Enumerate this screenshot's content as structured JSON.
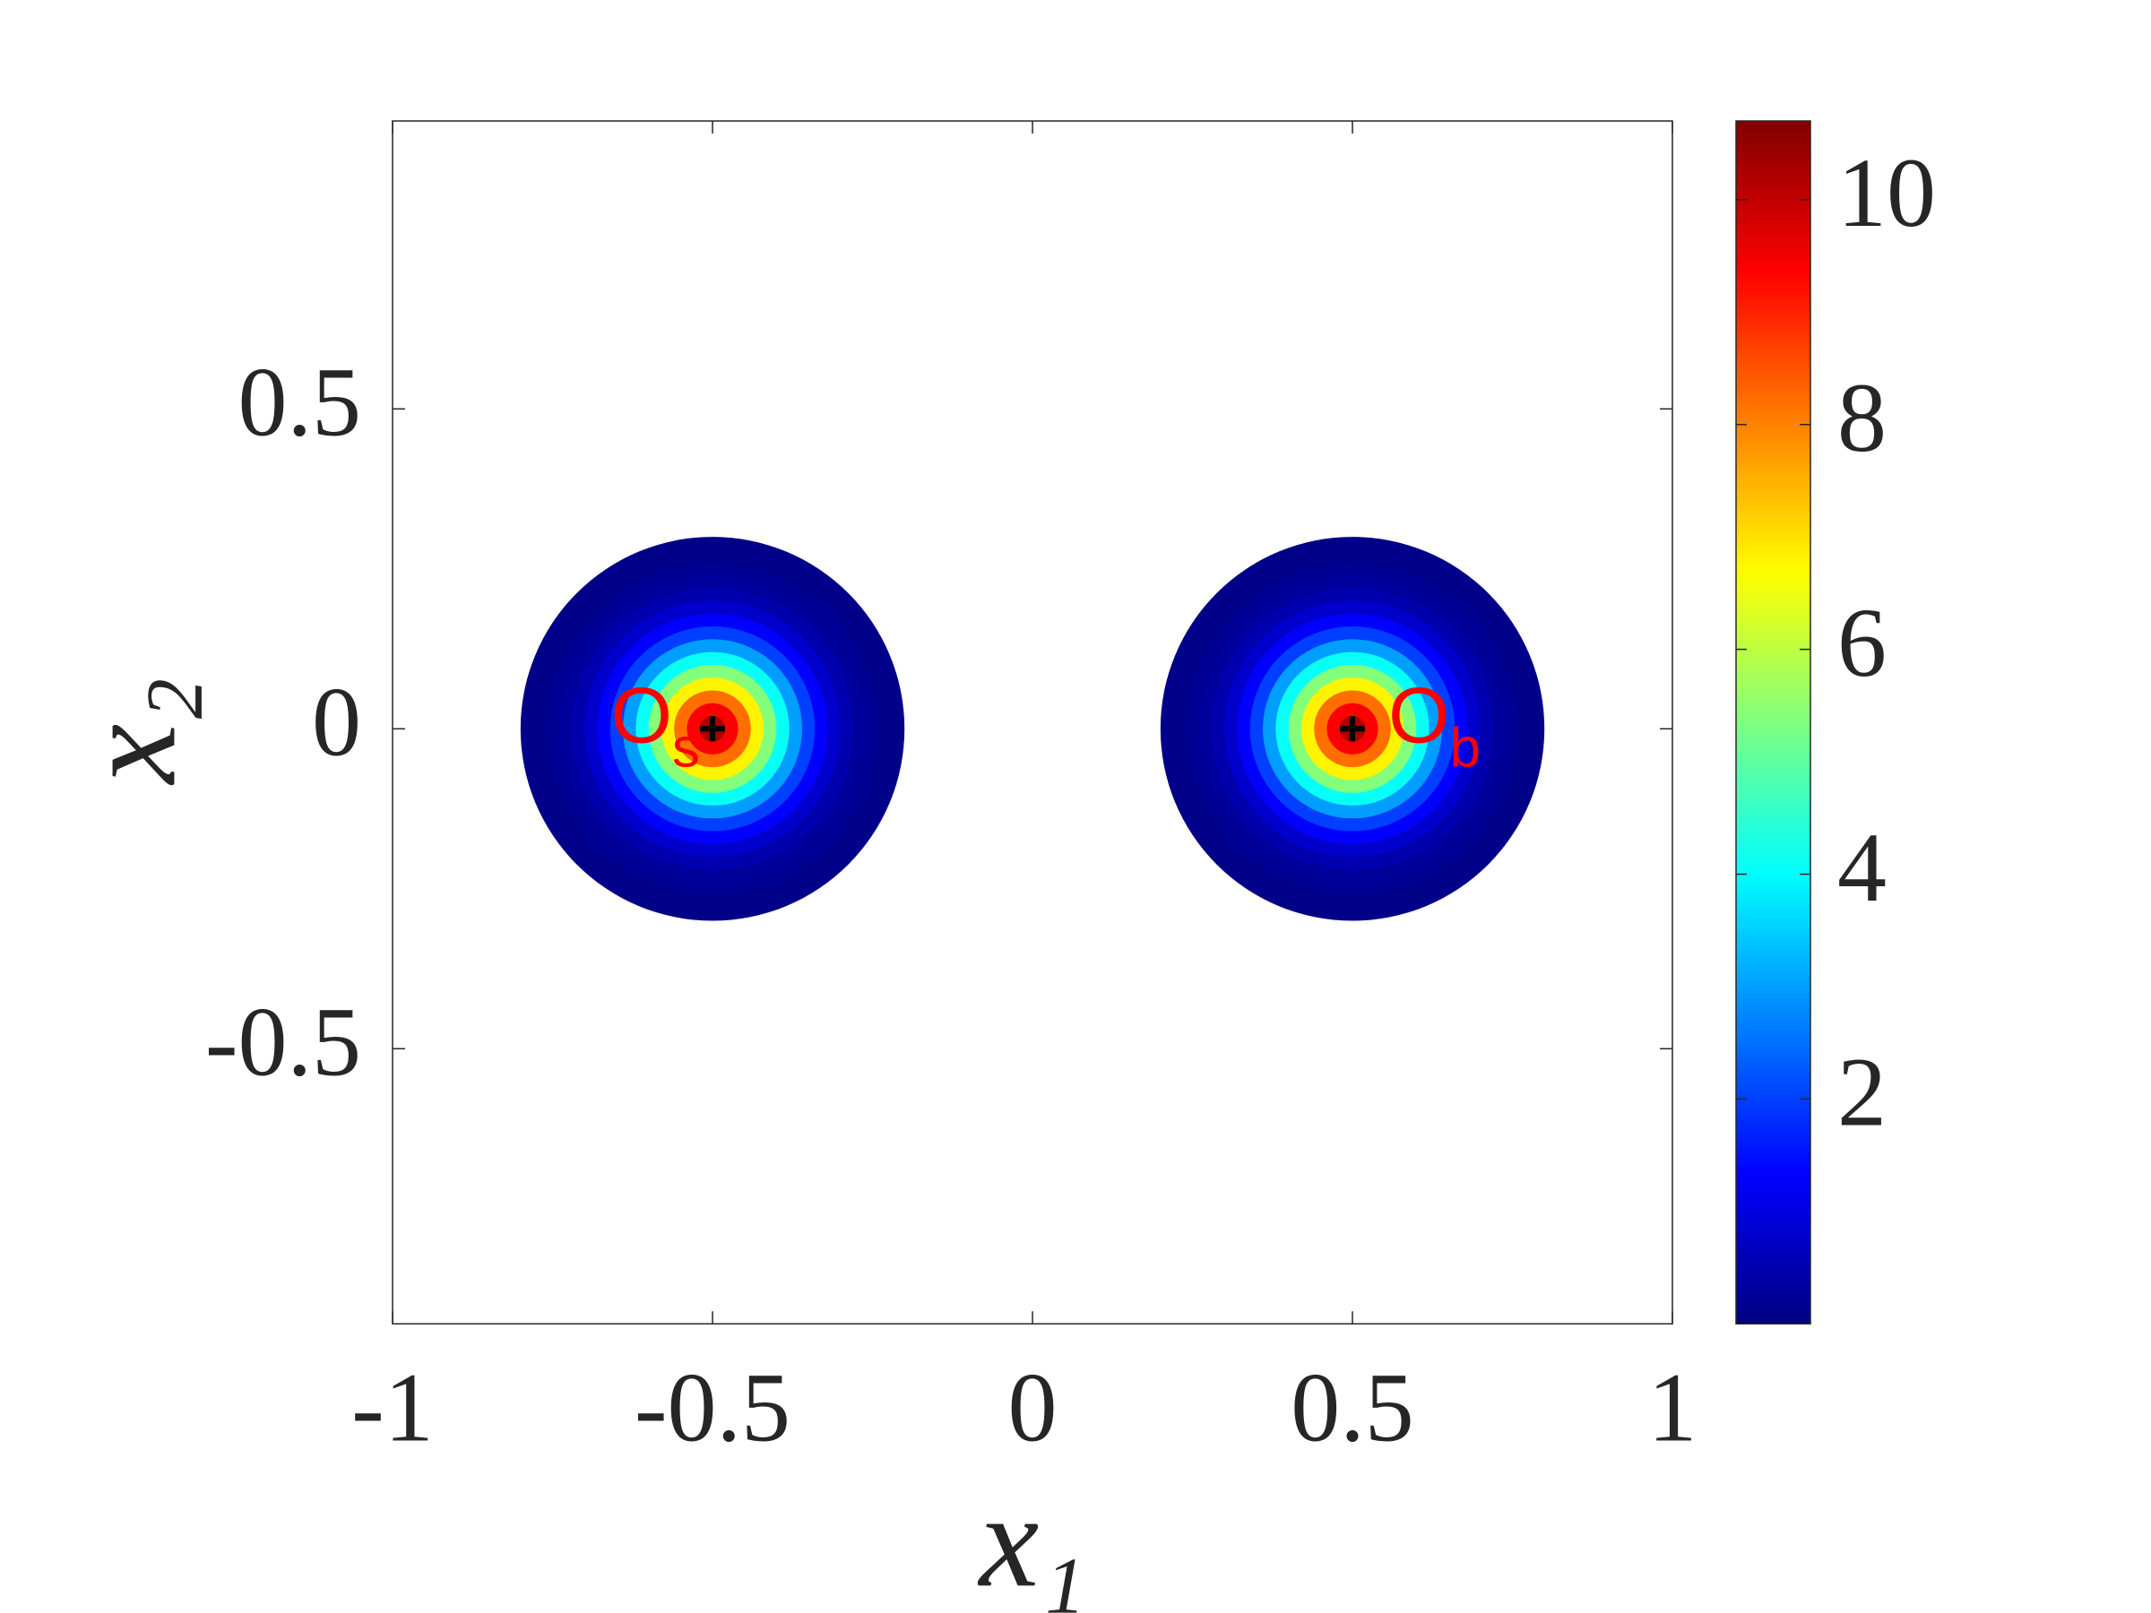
{
  "chart_data": {
    "type": "heatmap",
    "colormap": "jet",
    "xlabel": "x₁",
    "ylabel": "x₂",
    "xlim": [
      -1,
      1
    ],
    "ylim": [
      -0.93,
      0.95
    ],
    "xticks": [
      -1,
      -0.5,
      0,
      0.5,
      1
    ],
    "yticks": [
      -0.5,
      0,
      0.5
    ],
    "clim": [
      0,
      10.7
    ],
    "cticks": [
      2,
      4,
      6,
      8,
      10
    ],
    "blobs": [
      {
        "x": -0.5,
        "y": 0,
        "label": "O",
        "subscript": "s",
        "r": [
          0.3,
          0.28,
          0.26,
          0.24,
          0.22,
          0.2,
          0.18,
          0.16,
          0.14,
          0.12,
          0.1,
          0.08,
          0.06,
          0.04,
          0.02
        ],
        "values": [
          0.1,
          0.1,
          0.2,
          0.3,
          0.5,
          0.8,
          1.3,
          2.0,
          3.0,
          4.1,
          5.4,
          6.8,
          8.2,
          9.4,
          10.3
        ]
      },
      {
        "x": 0.5,
        "y": 0,
        "label": "O",
        "subscript": "b",
        "r": [
          0.3,
          0.28,
          0.26,
          0.24,
          0.22,
          0.2,
          0.18,
          0.16,
          0.14,
          0.12,
          0.1,
          0.08,
          0.06,
          0.04,
          0.02
        ],
        "values": [
          0.1,
          0.1,
          0.2,
          0.3,
          0.5,
          0.8,
          1.3,
          2.0,
          3.0,
          4.1,
          5.4,
          6.8,
          8.2,
          9.4,
          10.3
        ]
      }
    ]
  }
}
